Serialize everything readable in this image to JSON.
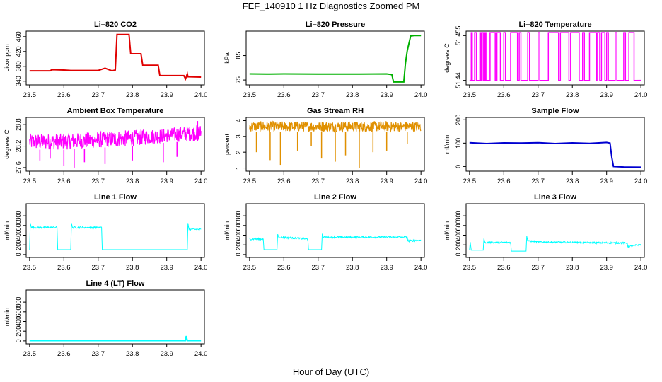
{
  "title": "FEF_140910  1 Hz Diagnostics Zoomed PM",
  "xlabel": "Hour of Day (UTC)",
  "chart_data": [
    {
      "type": "line",
      "title": "Li–820 CO2",
      "ylabel": "Licor ppm",
      "color": "#e00000",
      "ylim": [
        330,
        475
      ],
      "yticks": [
        340,
        380,
        420,
        460
      ],
      "xlim": [
        23.49,
        24.01
      ],
      "xticks": [
        23.5,
        23.6,
        23.7,
        23.8,
        23.9,
        24.0
      ],
      "series": [
        {
          "x": [
            23.5,
            23.56,
            23.565,
            23.6,
            23.62,
            23.7,
            23.72,
            23.74,
            23.75,
            23.755,
            23.79,
            23.795,
            23.825,
            23.83,
            23.875,
            23.88,
            23.95,
            23.955,
            23.96,
            23.962,
            24.0
          ],
          "y": [
            368,
            368,
            371,
            370,
            369,
            369,
            375,
            368,
            370,
            466,
            466,
            414,
            414,
            383,
            383,
            355,
            355,
            346,
            360,
            352,
            351
          ]
        }
      ]
    },
    {
      "type": "line",
      "title": "Li–820 Pressure",
      "ylabel": "kPa",
      "color": "#00b000",
      "ylim": [
        73,
        95
      ],
      "yticks": [
        75,
        85
      ],
      "xlim": [
        23.49,
        24.01
      ],
      "xticks": [
        23.5,
        23.6,
        23.7,
        23.8,
        23.9,
        24.0
      ],
      "series": [
        {
          "x": [
            23.5,
            23.55,
            23.6,
            23.7,
            23.8,
            23.9,
            23.915,
            23.92,
            23.95,
            23.955,
            23.96,
            23.97,
            23.98,
            24.0
          ],
          "y": [
            77.5,
            77.4,
            77.5,
            77.4,
            77.4,
            77.5,
            77.2,
            74.2,
            74.2,
            82,
            87,
            93,
            93.2,
            93.2
          ]
        }
      ]
    },
    {
      "type": "line",
      "title": "Li–820 Temperature",
      "ylabel": "degrees C",
      "color": "#ff00ff",
      "ylim": [
        51.4385,
        51.4565
      ],
      "yticks": [
        51.44,
        51.455
      ],
      "xlim": [
        23.49,
        24.01
      ],
      "xticks": [
        23.5,
        23.6,
        23.7,
        23.8,
        23.9,
        24.0
      ],
      "levels": [
        51.44,
        51.456
      ],
      "switch_x": [
        23.505,
        23.508,
        23.515,
        23.52,
        23.53,
        23.532,
        23.535,
        23.54,
        23.545,
        23.548,
        23.56,
        23.575,
        23.58,
        23.59,
        23.6,
        23.605,
        23.62,
        23.64,
        23.645,
        23.65,
        23.67,
        23.675,
        23.7,
        23.705,
        23.73,
        23.76,
        23.765,
        23.79,
        23.795,
        23.82,
        23.83,
        23.835,
        23.85,
        23.87,
        23.872,
        23.88,
        23.885,
        23.895,
        23.9,
        23.905,
        23.925,
        23.93,
        23.95,
        23.955,
        23.965,
        23.98
      ]
    },
    {
      "type": "line",
      "title": "Ambient Box Temperature",
      "ylabel": "degrees C",
      "color": "#ff00ff",
      "ylim": [
        27.5,
        29.0
      ],
      "yticks": [
        27.6,
        28.2,
        28.8
      ],
      "xlim": [
        23.49,
        24.01
      ],
      "xticks": [
        23.5,
        23.6,
        23.7,
        23.8,
        23.9,
        24.0
      ],
      "band": {
        "x": [
          23.5,
          23.6,
          23.7,
          23.8,
          23.9,
          24.0
        ],
        "low": [
          28.1,
          28.1,
          28.15,
          28.2,
          28.3,
          28.35
        ],
        "high": [
          28.55,
          28.55,
          28.6,
          28.65,
          28.7,
          28.8
        ]
      },
      "dips": [
        [
          23.53,
          27.8
        ],
        [
          23.56,
          27.85
        ],
        [
          23.6,
          27.65
        ],
        [
          23.63,
          27.6
        ],
        [
          23.66,
          27.75
        ],
        [
          23.72,
          27.7
        ],
        [
          23.8,
          27.8
        ],
        [
          23.89,
          27.75
        ],
        [
          23.93,
          27.9
        ],
        [
          23.99,
          28.9
        ]
      ]
    },
    {
      "type": "line",
      "title": "Gas Stream RH",
      "ylabel": "percent",
      "color": "#e09000",
      "ylim": [
        0.8,
        4.2
      ],
      "yticks": [
        1.0,
        2.0,
        3.0,
        4.0
      ],
      "xlim": [
        23.49,
        24.01
      ],
      "xticks": [
        23.5,
        23.6,
        23.7,
        23.8,
        23.9,
        24.0
      ],
      "band": {
        "x": [
          23.5,
          24.0
        ],
        "low": [
          3.3,
          3.3
        ],
        "high": [
          3.95,
          3.95
        ]
      },
      "dips": [
        [
          23.52,
          2.0
        ],
        [
          23.56,
          1.5
        ],
        [
          23.59,
          1.2
        ],
        [
          23.64,
          2.1
        ],
        [
          23.68,
          2.4
        ],
        [
          23.71,
          1.6
        ],
        [
          23.75,
          1.4
        ],
        [
          23.78,
          1.8
        ],
        [
          23.82,
          1.0
        ],
        [
          23.86,
          2.0
        ],
        [
          23.9,
          2.1
        ],
        [
          23.96,
          2.5
        ]
      ]
    },
    {
      "type": "line",
      "title": "Sample Flow",
      "ylabel": "ml/min",
      "color": "#0000d0",
      "ylim": [
        -20,
        210
      ],
      "yticks": [
        0,
        100,
        200
      ],
      "xlim": [
        23.49,
        24.01
      ],
      "xticks": [
        23.5,
        23.6,
        23.7,
        23.8,
        23.9,
        24.0
      ],
      "series": [
        {
          "x": [
            23.5,
            23.55,
            23.6,
            23.65,
            23.7,
            23.75,
            23.8,
            23.85,
            23.9,
            23.91,
            23.915,
            23.92,
            23.95,
            24.0
          ],
          "y": [
            102,
            98,
            101,
            100,
            102,
            98,
            101,
            99,
            103,
            100,
            40,
            0,
            -2,
            -3
          ]
        }
      ]
    },
    {
      "type": "line",
      "title": "Line 1 Flow",
      "ylabel": "ml/min",
      "color": "#00ffff",
      "ylim": [
        -60,
        1050
      ],
      "yticks": [
        0,
        200,
        400,
        600,
        800
      ],
      "xlim": [
        23.49,
        24.01
      ],
      "xticks": [
        23.5,
        23.6,
        23.7,
        23.8,
        23.9,
        24.0
      ],
      "noise": 18,
      "series": [
        {
          "x": [
            23.5,
            23.502,
            23.505,
            23.58,
            23.582,
            23.62,
            23.622,
            23.625,
            23.71,
            23.712,
            23.96,
            23.962,
            23.965,
            24.0
          ],
          "y": [
            100,
            650,
            560,
            560,
            100,
            100,
            650,
            560,
            560,
            100,
            100,
            650,
            520,
            520
          ]
        }
      ]
    },
    {
      "type": "line",
      "title": "Line 2 Flow",
      "ylabel": "ml/min",
      "color": "#00ffff",
      "ylim": [
        -60,
        1050
      ],
      "yticks": [
        0,
        200,
        400,
        600,
        800
      ],
      "xlim": [
        23.49,
        24.01
      ],
      "xticks": [
        23.5,
        23.6,
        23.7,
        23.8,
        23.9,
        24.0
      ],
      "noise": 18,
      "series": [
        {
          "x": [
            23.5,
            23.54,
            23.542,
            23.58,
            23.582,
            23.585,
            23.67,
            23.672,
            23.71,
            23.712,
            23.715,
            23.96,
            23.962,
            24.0
          ],
          "y": [
            320,
            320,
            100,
            100,
            420,
            360,
            320,
            100,
            100,
            430,
            360,
            360,
            280,
            300
          ]
        }
      ]
    },
    {
      "type": "line",
      "title": "Line 3 Flow",
      "ylabel": "ml/min",
      "color": "#00ffff",
      "ylim": [
        -60,
        1050
      ],
      "yticks": [
        0,
        200,
        400,
        600,
        800
      ],
      "xlim": [
        23.49,
        24.01
      ],
      "xticks": [
        23.5,
        23.6,
        23.7,
        23.8,
        23.9,
        24.0
      ],
      "noise": 16,
      "series": [
        {
          "x": [
            23.5,
            23.502,
            23.505,
            23.54,
            23.542,
            23.545,
            23.62,
            23.622,
            23.665,
            23.667,
            23.67,
            23.7,
            23.92,
            23.96,
            23.962,
            24.0
          ],
          "y": [
            90,
            260,
            90,
            90,
            330,
            250,
            250,
            70,
            70,
            380,
            280,
            260,
            240,
            240,
            160,
            210
          ]
        }
      ]
    },
    {
      "type": "line",
      "title": "Line 4 (LT) Flow",
      "ylabel": "ml/min",
      "color": "#00ffff",
      "ylim": [
        -60,
        1050
      ],
      "yticks": [
        0,
        200,
        400,
        600,
        800
      ],
      "xlim": [
        23.49,
        24.01
      ],
      "xticks": [
        23.5,
        23.6,
        23.7,
        23.8,
        23.9,
        24.0
      ],
      "series": [
        {
          "x": [
            23.5,
            23.955,
            23.957,
            23.96,
            24.0
          ],
          "y": [
            5,
            5,
            100,
            5,
            5
          ]
        }
      ]
    }
  ]
}
